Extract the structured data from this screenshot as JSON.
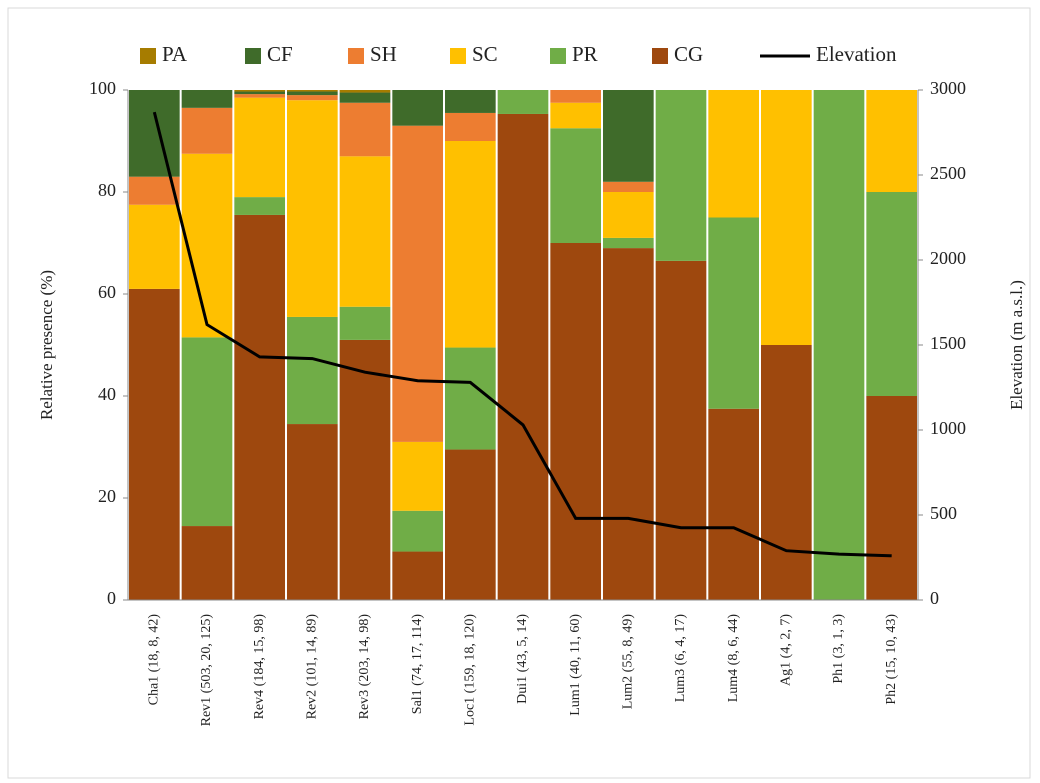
{
  "chart_data": {
    "type": "stacked-bar-line",
    "categories": [
      "Cha1 (18, 8, 42)",
      "Rev1 (503, 20, 125)",
      "Rev4 (184, 15, 98)",
      "Rev2 (101, 14, 89)",
      "Rev3 (203, 14, 98)",
      "Sal1 (74, 17, 114)",
      "Loc1 (159, 18, 120)",
      "Dui1 (43, 5, 14)",
      "Lum1 (40, 11, 60)",
      "Lum2 (55, 8, 49)",
      "Lum3 (6, 4, 17)",
      "Lum4 (8, 6, 44)",
      "Ag1 (4, 2, 7)",
      "Ph1 (3, 1, 3)",
      "Ph2 (15, 10, 43)"
    ],
    "y_label": "Relative presence (%)",
    "y2_label": "Elevation (m a.s.l.)",
    "ylim": [
      0,
      100
    ],
    "yticks": [
      0,
      20,
      40,
      60,
      80,
      100
    ],
    "y2lim": [
      0,
      3000
    ],
    "y2ticks": [
      0,
      500,
      1000,
      1500,
      2000,
      2500,
      3000
    ],
    "legend": "top",
    "series": [
      {
        "name": "CG",
        "color": "#9e480e",
        "values": [
          61,
          14.5,
          75.5,
          34.5,
          51,
          9.5,
          29.5,
          95.3,
          70,
          69,
          66.5,
          37.5,
          50,
          0,
          40
        ]
      },
      {
        "name": "PR",
        "color": "#70ad47",
        "values": [
          0,
          37,
          3.5,
          21,
          6.5,
          8,
          20,
          4.7,
          22.5,
          2,
          33.5,
          37.5,
          0,
          100,
          40
        ]
      },
      {
        "name": "SC",
        "color": "#ffc000",
        "values": [
          16.5,
          36,
          19.5,
          42.5,
          29.5,
          13.5,
          40.5,
          0,
          5,
          9,
          0,
          25,
          50,
          0,
          20
        ]
      },
      {
        "name": "SH",
        "color": "#ed7d31",
        "values": [
          5.5,
          9,
          0.7,
          1,
          10.5,
          62,
          5.5,
          0,
          2.5,
          2,
          0,
          0,
          0,
          0,
          0
        ]
      },
      {
        "name": "CF",
        "color": "#3f6b2a",
        "values": [
          17,
          3.5,
          0.5,
          0.7,
          2,
          7,
          4.5,
          0,
          0,
          18,
          0,
          0,
          0,
          0,
          0
        ]
      },
      {
        "name": "PA",
        "color": "#a67c00",
        "values": [
          0,
          0,
          0.3,
          0.3,
          0.5,
          0,
          0,
          0,
          0,
          0,
          0,
          0,
          0,
          0,
          0
        ]
      },
      {
        "name": "Elevation",
        "color": "#000000",
        "axis": "y2",
        "values": [
          2870,
          1620,
          1430,
          1420,
          1340,
          1290,
          1280,
          1030,
          480,
          480,
          425,
          425,
          290,
          270,
          260
        ]
      }
    ]
  }
}
